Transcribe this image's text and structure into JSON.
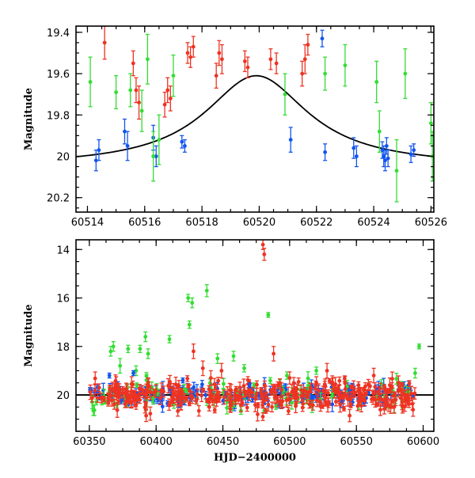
{
  "chart_data": [
    {
      "type": "scatter",
      "xlabel": "",
      "ylabel": "Magnitude",
      "xlim": [
        60513.6,
        60526.1
      ],
      "ylim": [
        20.27,
        19.37
      ],
      "y_inverted": true,
      "xticks": [
        60514,
        60516,
        60518,
        60520,
        60522,
        60524,
        60526
      ],
      "yticks": [
        19.4,
        19.6,
        19.8,
        20,
        20.2
      ],
      "yticklabels": [
        "19.4",
        "19.6",
        "19.8",
        "20",
        "20.2"
      ],
      "colors": {
        "green": "#33dd33",
        "red": "#ee3322",
        "blue": "#1155ee"
      },
      "model_curve": {
        "peak_x": 60519.9,
        "peak_y": 19.61,
        "baseline": 20.05,
        "width": 2.2
      },
      "series": [
        {
          "color": "blue",
          "points": [
            [
              60514.3,
              20.02,
              0.05
            ],
            [
              60514.4,
              19.97,
              0.05
            ],
            [
              60515.3,
              19.88,
              0.06
            ],
            [
              60515.4,
              19.95,
              0.07
            ],
            [
              60516.3,
              19.91,
              0.06
            ],
            [
              60516.4,
              20.0,
              0.05
            ],
            [
              60517.3,
              19.93,
              0.03
            ],
            [
              60517.4,
              19.95,
              0.03
            ],
            [
              60521.1,
              19.92,
              0.06
            ],
            [
              60522.2,
              19.43,
              0.04
            ],
            [
              60522.3,
              19.98,
              0.04
            ],
            [
              60523.3,
              19.96,
              0.05
            ],
            [
              60523.4,
              20.0,
              0.05
            ],
            [
              60524.3,
              19.97,
              0.04
            ],
            [
              60524.35,
              20.0,
              0.05
            ],
            [
              60524.4,
              20.02,
              0.05
            ],
            [
              60524.45,
              19.95,
              0.04
            ],
            [
              60524.5,
              20.01,
              0.04
            ],
            [
              60525.3,
              19.99,
              0.04
            ],
            [
              60525.4,
              19.97,
              0.03
            ]
          ]
        },
        {
          "color": "red",
          "points": [
            [
              60514.6,
              19.45,
              0.08
            ],
            [
              60515.6,
              19.55,
              0.06
            ],
            [
              60515.7,
              19.68,
              0.06
            ],
            [
              60515.8,
              19.74,
              0.08
            ],
            [
              60516.7,
              19.75,
              0.06
            ],
            [
              60516.8,
              19.68,
              0.06
            ],
            [
              60516.9,
              19.72,
              0.06
            ],
            [
              60517.5,
              19.5,
              0.05
            ],
            [
              60517.6,
              19.52,
              0.05
            ],
            [
              60517.7,
              19.47,
              0.05
            ],
            [
              60518.5,
              19.61,
              0.06
            ],
            [
              60518.6,
              19.5,
              0.06
            ],
            [
              60518.7,
              19.53,
              0.07
            ],
            [
              60519.5,
              19.54,
              0.05
            ],
            [
              60519.6,
              19.57,
              0.05
            ],
            [
              60520.4,
              19.53,
              0.05
            ],
            [
              60520.6,
              19.55,
              0.05
            ],
            [
              60521.5,
              19.6,
              0.06
            ],
            [
              60521.6,
              19.53,
              0.07
            ],
            [
              60521.7,
              19.46,
              0.05
            ]
          ]
        },
        {
          "color": "green",
          "points": [
            [
              60514.1,
              19.64,
              0.12
            ],
            [
              60515.0,
              19.69,
              0.08
            ],
            [
              60515.5,
              19.68,
              0.08
            ],
            [
              60515.9,
              19.78,
              0.1
            ],
            [
              60516.1,
              19.53,
              0.12
            ],
            [
              60516.3,
              20.0,
              0.12
            ],
            [
              60516.5,
              19.92,
              0.12
            ],
            [
              60517.0,
              19.61,
              0.1
            ],
            [
              60520.9,
              19.7,
              0.1
            ],
            [
              60522.3,
              19.6,
              0.08
            ],
            [
              60523.0,
              19.56,
              0.1
            ],
            [
              60524.1,
              19.64,
              0.1
            ],
            [
              60524.2,
              19.88,
              0.1
            ],
            [
              60524.8,
              20.07,
              0.15
            ],
            [
              60525.1,
              19.6,
              0.12
            ],
            [
              60526.0,
              19.84,
              0.1
            ],
            [
              60526.05,
              20.0,
              0.12
            ]
          ]
        }
      ]
    },
    {
      "type": "scatter",
      "xlabel": "HJD−2400000",
      "ylabel": "Magnitude",
      "xlim": [
        60340,
        60608
      ],
      "ylim": [
        21.5,
        13.6
      ],
      "y_inverted": true,
      "xticks": [
        60350,
        60400,
        60450,
        60500,
        60550,
        60600
      ],
      "yticks": [
        14,
        16,
        18,
        20
      ],
      "yticklabels": [
        "14",
        "16",
        "18",
        "20"
      ],
      "colors": {
        "green": "#33dd33",
        "red": "#ee3322",
        "blue": "#1155ee"
      },
      "baseline_mag": 20.0,
      "n_baseline_points": {
        "red": 360,
        "green": 90,
        "blue": 190
      },
      "series": [
        {
          "color": "green",
          "outliers": [
            [
              60366,
              18.2,
              0.2
            ],
            [
              60368,
              18.0,
              0.2
            ],
            [
              60373,
              18.8,
              0.3
            ],
            [
              60379,
              18.1,
              0.15
            ],
            [
              60385,
              19.0,
              0.2
            ],
            [
              60388,
              18.1,
              0.15
            ],
            [
              60392,
              17.6,
              0.2
            ],
            [
              60394,
              18.3,
              0.2
            ],
            [
              60410,
              17.7,
              0.15
            ],
            [
              60424,
              16.0,
              0.15
            ],
            [
              60425,
              17.1,
              0.15
            ],
            [
              60427,
              16.2,
              0.2
            ],
            [
              60438,
              15.7,
              0.25
            ],
            [
              60446,
              18.5,
              0.2
            ],
            [
              60458,
              18.4,
              0.2
            ],
            [
              60466,
              18.9,
              0.15
            ],
            [
              60484,
              16.7,
              0.1
            ],
            [
              60498,
              19.2,
              0.15
            ],
            [
              60520,
              19.0,
              0.15
            ],
            [
              60594,
              19.1,
              0.2
            ],
            [
              60597,
              18.0,
              0.1
            ]
          ]
        },
        {
          "color": "red",
          "outliers": [
            [
              60428,
              18.2,
              0.3
            ],
            [
              60435,
              18.9,
              0.3
            ],
            [
              60441,
              19.3,
              0.3
            ],
            [
              60449,
              19.0,
              0.3
            ],
            [
              60480,
              13.8,
              0.2
            ],
            [
              60481,
              14.2,
              0.25
            ],
            [
              60488,
              18.3,
              0.3
            ],
            [
              60500,
              19.3,
              0.25
            ],
            [
              60520,
              19.5,
              0.25
            ],
            [
              60528,
              19.0,
              0.3
            ],
            [
              60563,
              19.2,
              0.3
            ],
            [
              60575,
              19.6,
              0.3
            ]
          ]
        },
        {
          "color": "blue",
          "outliers": [
            [
              60365,
              19.2,
              0.1
            ],
            [
              60383,
              19.1,
              0.1
            ],
            [
              60420,
              19.4,
              0.1
            ],
            [
              60470,
              19.6,
              0.1
            ]
          ]
        }
      ]
    }
  ]
}
